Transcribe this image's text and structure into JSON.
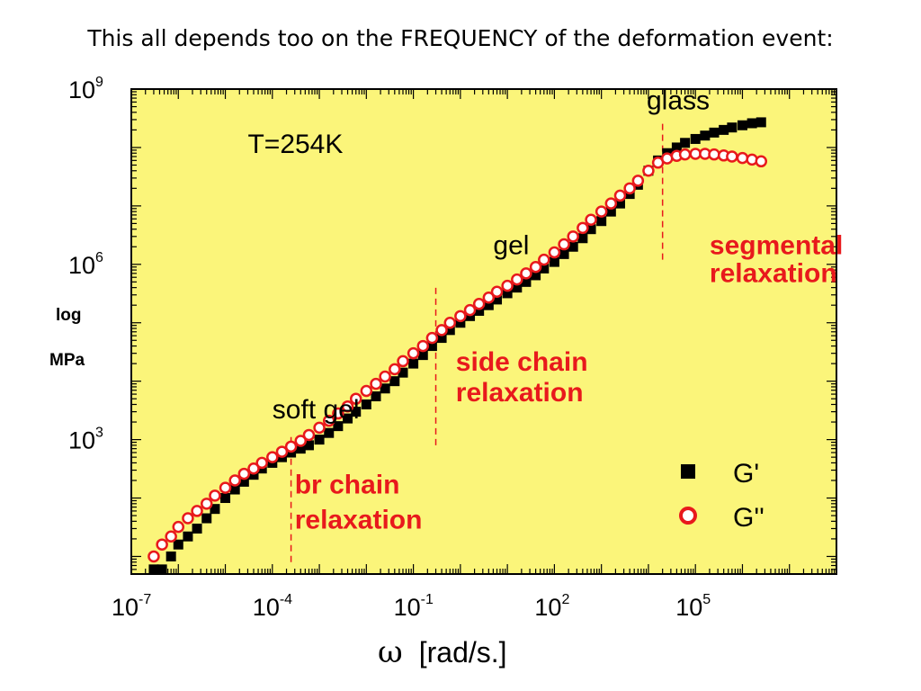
{
  "slide": {
    "title": "This all depends too on the FREQUENCY of the deformation event:",
    "ylabel_line1": "log",
    "ylabel_line2": "MPa"
  },
  "chart_data": {
    "type": "scatter",
    "title": "",
    "xlabel_symbol": "ω",
    "xlabel": "[rad/s.]",
    "ylabel": "log MPa",
    "x_scale": "log",
    "y_scale": "log",
    "xlim": [
      1e-07,
      100000000.0
    ],
    "ylim": [
      5,
      1000000000.0
    ],
    "x_ticks": [
      {
        "value": 1e-07,
        "base": "10",
        "exp": "-7"
      },
      {
        "value": 0.0001,
        "base": "10",
        "exp": "-4"
      },
      {
        "value": 0.1,
        "base": "10",
        "exp": "-1"
      },
      {
        "value": 100,
        "base": "10",
        "exp": "2"
      },
      {
        "value": 100000,
        "base": "10",
        "exp": "5"
      }
    ],
    "y_ticks": [
      {
        "value": 1000,
        "base": "10",
        "exp": "3"
      },
      {
        "value": 1000000,
        "base": "10",
        "exp": "6"
      },
      {
        "value": 1000000000,
        "base": "10",
        "exp": "9"
      }
    ],
    "grid": false,
    "legend_position": "bottom-right",
    "plot_background": "#fbf57a",
    "colors": {
      "g_prime": "#000000",
      "g_double_prime": "#e8191c",
      "annotation_red": "#e8191c"
    },
    "series": [
      {
        "name": "G'",
        "marker": "filled-square",
        "x": [
          3e-07,
          4.5e-07,
          7e-07,
          1e-06,
          1.6e-06,
          2.5e-06,
          4e-06,
          6e-06,
          1e-05,
          1.6e-05,
          2.5e-05,
          4e-05,
          6e-05,
          0.0001,
          0.00016,
          0.00025,
          0.0004,
          0.0006,
          0.001,
          0.0016,
          0.0025,
          0.004,
          0.006,
          0.01,
          0.016,
          0.025,
          0.04,
          0.06,
          0.1,
          0.16,
          0.25,
          0.4,
          0.6,
          1,
          1.6,
          2.5,
          4,
          6,
          10,
          16,
          25,
          40,
          60,
          100,
          160,
          250,
          400,
          600,
          1000,
          1600,
          2500,
          4000,
          6000,
          10000,
          16000,
          25000,
          40000,
          60000,
          100000,
          160000,
          250000,
          400000,
          600000,
          1000000,
          1600000,
          2500000
        ],
        "y": [
          6,
          6,
          10,
          16,
          22,
          30,
          45,
          65,
          100,
          140,
          190,
          250,
          320,
          400,
          500,
          600,
          700,
          800,
          1000,
          1300,
          1700,
          2300,
          3000,
          4000,
          5500,
          7500,
          10000,
          14000,
          20000,
          28000,
          40000,
          55000,
          75000,
          100000,
          130000,
          160000,
          200000,
          250000,
          320000,
          400000,
          500000,
          650000,
          850000,
          1100000,
          1500000,
          2000000,
          2800000,
          4000000,
          5500000,
          8000000,
          11000000,
          16000000,
          23000000,
          40000000,
          60000000,
          80000000,
          100000000,
          120000000,
          140000000,
          160000000,
          180000000,
          200000000,
          220000000,
          240000000,
          260000000,
          270000000
        ]
      },
      {
        "name": "G''",
        "marker": "open-circle",
        "x": [
          3e-07,
          4.5e-07,
          7e-07,
          1e-06,
          1.6e-06,
          2.5e-06,
          4e-06,
          6e-06,
          1e-05,
          1.6e-05,
          2.5e-05,
          4e-05,
          6e-05,
          0.0001,
          0.00016,
          0.00025,
          0.0004,
          0.0006,
          0.001,
          0.0016,
          0.0025,
          0.004,
          0.006,
          0.01,
          0.016,
          0.025,
          0.04,
          0.06,
          0.1,
          0.16,
          0.25,
          0.4,
          0.6,
          1,
          1.6,
          2.5,
          4,
          6,
          10,
          16,
          25,
          40,
          60,
          100,
          160,
          250,
          400,
          600,
          1000,
          1600,
          2500,
          4000,
          6000,
          10000,
          16000,
          25000,
          40000,
          60000,
          100000,
          160000,
          250000,
          400000,
          600000,
          1000000,
          1600000,
          2500000
        ],
        "y": [
          10,
          16,
          22,
          32,
          45,
          60,
          80,
          110,
          150,
          200,
          260,
          320,
          400,
          500,
          620,
          760,
          950,
          1200,
          1600,
          2100,
          2800,
          3700,
          5000,
          6800,
          9000,
          12000,
          16000,
          22000,
          30000,
          40000,
          55000,
          75000,
          100000,
          130000,
          165000,
          210000,
          270000,
          340000,
          430000,
          550000,
          700000,
          900000,
          1200000,
          1600000,
          2200000,
          3000000,
          4200000,
          5800000,
          8000000,
          11000000,
          15000000,
          20000000,
          27000000,
          40000000,
          55000000,
          65000000,
          72000000,
          76000000,
          78000000,
          78000000,
          76000000,
          73000000,
          70000000,
          66000000,
          62000000,
          58000000
        ]
      }
    ],
    "annotations": [
      {
        "text": "glass",
        "x": 250000,
        "y": 450000000,
        "color": "black"
      },
      {
        "text": "T=254K",
        "x": 3e-05,
        "y": 80000000,
        "color": "black"
      },
      {
        "text": "gel",
        "x": 5,
        "y": 1500000,
        "color": "black"
      },
      {
        "text": "soft gel",
        "x": 0.0001,
        "y": 2300,
        "color": "black"
      },
      {
        "text": "segmental",
        "x": 200000,
        "y": 1500000,
        "color": "red"
      },
      {
        "text": "relaxation",
        "x": 200000,
        "y": 500000,
        "color": "red"
      },
      {
        "text": "side chain",
        "x": 0.8,
        "y": 15000,
        "color": "red"
      },
      {
        "text": "relaxation",
        "x": 0.8,
        "y": 4500,
        "color": "red"
      },
      {
        "text": "br chain",
        "x": 0.0003,
        "y": 120,
        "color": "red"
      },
      {
        "text": "relaxation",
        "x": 0.0003,
        "y": 30,
        "color": "red"
      }
    ],
    "relaxation_markers": [
      {
        "x": 0.00025,
        "y_range": [
          8,
          1300
        ]
      },
      {
        "x": 0.3,
        "y_range": [
          800,
          400000
        ]
      },
      {
        "x": 20000,
        "y_range": [
          1200000,
          300000000
        ]
      }
    ]
  }
}
